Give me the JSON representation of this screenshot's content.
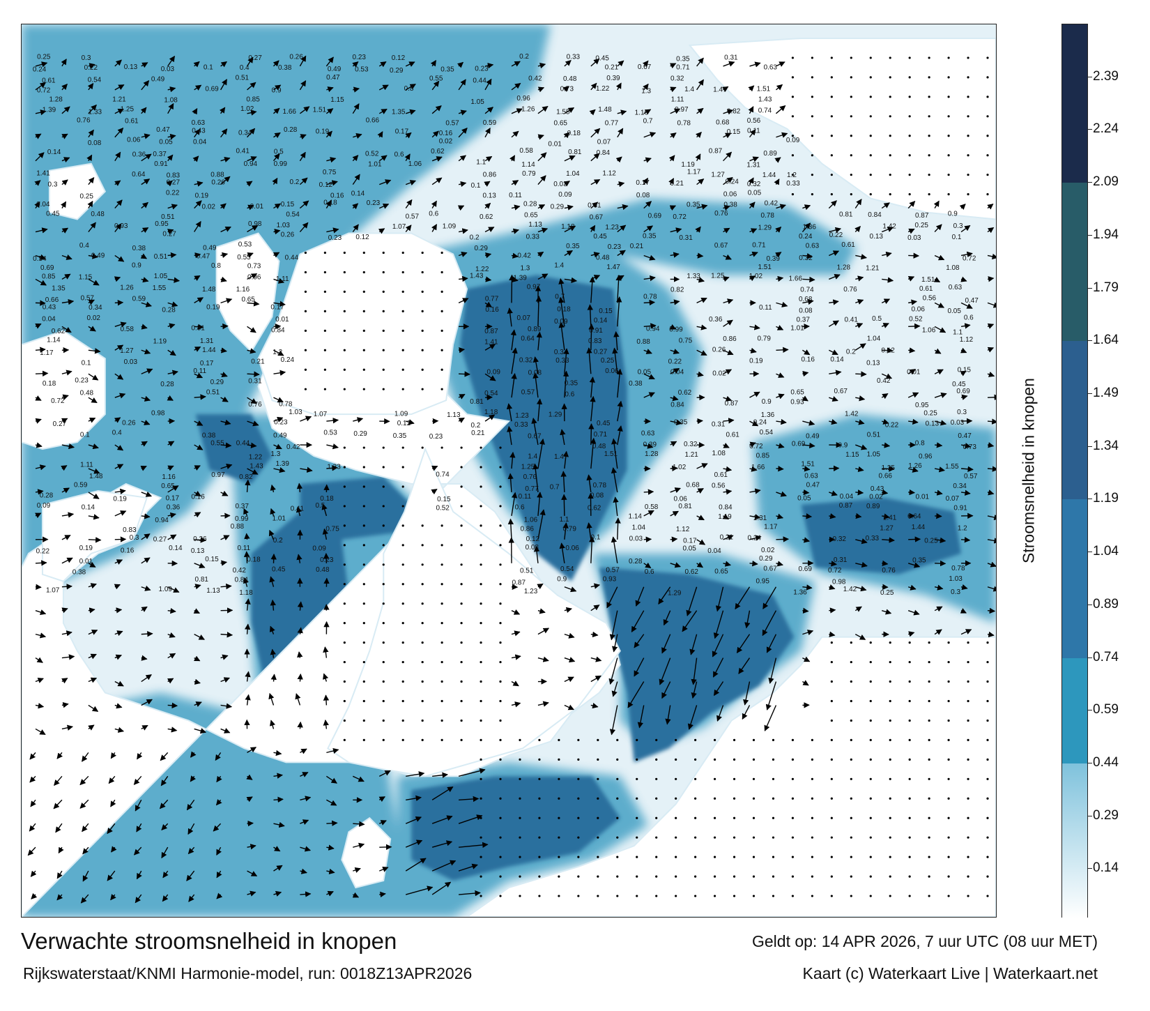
{
  "title": "Verwachte stroomsnelheid in knopen",
  "valid_time": "Geldt op: 14 APR 2026, 7 uur UTC (08 uur MET)",
  "model_run": "Rijkswaterstaat/KNMI Harmonie-model, run: 0018Z13APR2026",
  "credit": "Kaart (c) Waterkaart Live | Waterkaart.net",
  "colorbar": {
    "label": "Stroomsnelheid in knopen",
    "ticks": [
      "0.14",
      "0.29",
      "0.44",
      "0.59",
      "0.74",
      "0.89",
      "1.04",
      "1.19",
      "1.34",
      "1.49",
      "1.64",
      "1.79",
      "1.94",
      "2.09",
      "2.24",
      "2.39"
    ],
    "range": [
      0,
      2.54
    ],
    "bands": [
      {
        "from": 0.0,
        "to": 0.44,
        "color": "#7fc2dc"
      },
      {
        "from": 0.44,
        "to": 0.74,
        "color": "#2d97bd"
      },
      {
        "from": 0.74,
        "to": 1.19,
        "color": "#2e77a9"
      },
      {
        "from": 1.19,
        "to": 1.64,
        "color": "#2c5f8f"
      },
      {
        "from": 1.64,
        "to": 2.09,
        "color": "#285c68"
      },
      {
        "from": 2.09,
        "to": 2.54,
        "color": "#1b2b4b"
      }
    ]
  },
  "colors": {
    "land": "#ffffff",
    "water_light": "#e4f1f7",
    "water_mid": "#4fa6c8",
    "water_deep": "#2a6f9e",
    "arrow": "#000000"
  },
  "speed_labels": [
    {
      "t": "0.25"
    },
    {
      "t": "0.3"
    },
    {
      "t": "0.27"
    },
    {
      "t": "0.26"
    },
    {
      "t": "0.23"
    },
    {
      "t": "0.12"
    },
    {
      "t": "0.2"
    },
    {
      "t": "0.33"
    },
    {
      "t": "0.45"
    },
    {
      "t": "0.35"
    },
    {
      "t": "0.31"
    },
    {
      "t": "0.24"
    },
    {
      "t": "0.22"
    },
    {
      "t": "0.13"
    },
    {
      "t": "0.03"
    },
    {
      "t": "0.1"
    },
    {
      "t": "0.4"
    },
    {
      "t": "0.38"
    },
    {
      "t": "0.49"
    },
    {
      "t": "0.53"
    },
    {
      "t": "0.29"
    },
    {
      "t": "0.35"
    },
    {
      "t": "0.23"
    },
    {
      "t": "0.21"
    },
    {
      "t": "0.67"
    },
    {
      "t": "0.71"
    },
    {
      "t": "0.63"
    },
    {
      "t": "0.61"
    },
    {
      "t": "0.54"
    },
    {
      "t": "0.49"
    },
    {
      "t": "0.51"
    },
    {
      "t": "0.47"
    },
    {
      "t": "0.55"
    },
    {
      "t": "0.44"
    },
    {
      "t": "0.42"
    },
    {
      "t": "0.48"
    },
    {
      "t": "0.39"
    },
    {
      "t": "0.32"
    },
    {
      "t": "0.72"
    },
    {
      "t": "0.69"
    },
    {
      "t": "0.9"
    },
    {
      "t": "0.8"
    },
    {
      "t": "0.73"
    },
    {
      "t": "1.22"
    },
    {
      "t": "1.3"
    },
    {
      "t": "1.4"
    },
    {
      "t": "1.47"
    },
    {
      "t": "1.51"
    },
    {
      "t": "1.28"
    },
    {
      "t": "1.21"
    },
    {
      "t": "1.08"
    },
    {
      "t": "0.85"
    },
    {
      "t": "1.15"
    },
    {
      "t": "1.05"
    },
    {
      "t": "0.96"
    },
    {
      "t": "1.11"
    },
    {
      "t": "1.43"
    },
    {
      "t": "1.39"
    },
    {
      "t": "1.33"
    },
    {
      "t": "1.25"
    },
    {
      "t": "1.02"
    },
    {
      "t": "1.66"
    },
    {
      "t": "1.51"
    },
    {
      "t": "1.35"
    },
    {
      "t": "1.26"
    },
    {
      "t": "1.55"
    },
    {
      "t": "1.48"
    },
    {
      "t": "1.16"
    },
    {
      "t": "0.97"
    },
    {
      "t": "0.82"
    },
    {
      "t": "0.74"
    },
    {
      "t": "0.76"
    },
    {
      "t": "0.61"
    },
    {
      "t": "0.63"
    },
    {
      "t": "0.66"
    },
    {
      "t": "0.57"
    },
    {
      "t": "0.59"
    },
    {
      "t": "0.65"
    },
    {
      "t": "0.77"
    },
    {
      "t": "0.7"
    },
    {
      "t": "0.78"
    },
    {
      "t": "0.68"
    },
    {
      "t": "0.56"
    },
    {
      "t": "0.47"
    },
    {
      "t": "0.43"
    },
    {
      "t": "0.34"
    },
    {
      "t": "0.28"
    },
    {
      "t": "0.19"
    },
    {
      "t": "0.17"
    },
    {
      "t": "0.16"
    },
    {
      "t": "0.18"
    },
    {
      "t": "0.15"
    },
    {
      "t": "0.11"
    },
    {
      "t": "0.08"
    },
    {
      "t": "0.06"
    },
    {
      "t": "0.05"
    },
    {
      "t": "0.04"
    },
    {
      "t": "0.02"
    },
    {
      "t": "0.01"
    },
    {
      "t": "0.07"
    },
    {
      "t": "0.09"
    },
    {
      "t": "0.14"
    },
    {
      "t": "0.36"
    },
    {
      "t": "0.37"
    },
    {
      "t": "0.41"
    },
    {
      "t": "0.5"
    },
    {
      "t": "0.52"
    },
    {
      "t": "0.6"
    },
    {
      "t": "0.62"
    },
    {
      "t": "0.58"
    },
    {
      "t": "0.81"
    },
    {
      "t": "0.84"
    },
    {
      "t": "0.87"
    },
    {
      "t": "0.89"
    },
    {
      "t": "0.91"
    },
    {
      "t": "0.94"
    },
    {
      "t": "0.99"
    },
    {
      "t": "1.01"
    },
    {
      "t": "1.06"
    },
    {
      "t": "1.1"
    },
    {
      "t": "1.14"
    },
    {
      "t": "1.19"
    },
    {
      "t": "1.31"
    },
    {
      "t": "1.41"
    },
    {
      "t": "0.64"
    },
    {
      "t": "0.83"
    },
    {
      "t": "0.88"
    },
    {
      "t": "0.75"
    },
    {
      "t": "0.86"
    },
    {
      "t": "0.79"
    },
    {
      "t": "1.04"
    },
    {
      "t": "1.12"
    },
    {
      "t": "1.17"
    },
    {
      "t": "1.27"
    },
    {
      "t": "1.44"
    },
    {
      "t": "1.2"
    },
    {
      "t": "0.3"
    },
    {
      "t": "0.27"
    },
    {
      "t": "0.26"
    },
    {
      "t": "0.2"
    },
    {
      "t": "0.12"
    },
    {
      "t": "0.1"
    },
    {
      "t": "0.03"
    },
    {
      "t": "0.17"
    },
    {
      "t": "0.21"
    },
    {
      "t": "0.24"
    },
    {
      "t": "0.32"
    },
    {
      "t": "0.33"
    },
    {
      "t": "0.25"
    },
    {
      "t": "0.22"
    },
    {
      "t": "0.19"
    },
    {
      "t": "0.16"
    },
    {
      "t": "0.14"
    },
    {
      "t": "0.13"
    },
    {
      "t": "0.11"
    },
    {
      "t": "0.09"
    },
    {
      "t": "0.08"
    },
    {
      "t": "0.06"
    },
    {
      "t": "0.05"
    },
    {
      "t": "0.04"
    },
    {
      "t": "0.02"
    },
    {
      "t": "0.01"
    },
    {
      "t": "0.15"
    },
    {
      "t": "0.18"
    },
    {
      "t": "0.23"
    },
    {
      "t": "0.28"
    },
    {
      "t": "0.29"
    },
    {
      "t": "0.31"
    },
    {
      "t": "0.35"
    },
    {
      "t": "0.38"
    },
    {
      "t": "0.42"
    },
    {
      "t": "0.45"
    },
    {
      "t": "0.48"
    },
    {
      "t": "0.51"
    },
    {
      "t": "0.54"
    },
    {
      "t": "0.57"
    },
    {
      "t": "0.6"
    },
    {
      "t": "0.62"
    },
    {
      "t": "0.65"
    },
    {
      "t": "0.67"
    },
    {
      "t": "0.69"
    },
    {
      "t": "0.72"
    },
    {
      "t": "0.76"
    },
    {
      "t": "0.78"
    },
    {
      "t": "0.81"
    },
    {
      "t": "0.84"
    },
    {
      "t": "0.87"
    },
    {
      "t": "0.9"
    },
    {
      "t": "0.93"
    },
    {
      "t": "0.95"
    },
    {
      "t": "0.98"
    },
    {
      "t": "1.03"
    },
    {
      "t": "1.07"
    },
    {
      "t": "1.09"
    },
    {
      "t": "1.13"
    },
    {
      "t": "1.18"
    },
    {
      "t": "1.23"
    },
    {
      "t": "1.29"
    },
    {
      "t": "1.36"
    },
    {
      "t": "1.42"
    }
  ]
}
